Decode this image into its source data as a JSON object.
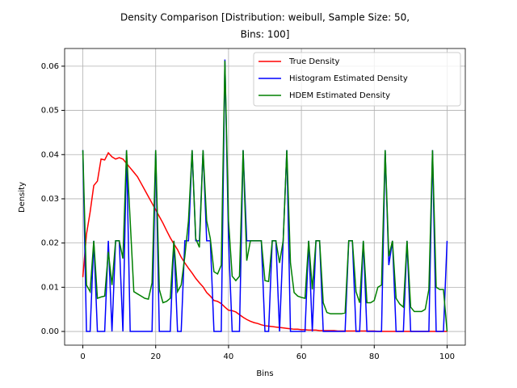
{
  "chart_data": {
    "type": "line",
    "title": [
      "Density Comparison [Distribution: weibull, Sample Size: 50,",
      "Bins: 100]"
    ],
    "xlabel": "Bins",
    "ylabel": "Density",
    "x": [
      0,
      1,
      2,
      3,
      4,
      5,
      6,
      7,
      8,
      9,
      10,
      11,
      12,
      13,
      14,
      15,
      16,
      17,
      18,
      19,
      20,
      21,
      22,
      23,
      24,
      25,
      26,
      27,
      28,
      29,
      30,
      31,
      32,
      33,
      34,
      35,
      36,
      37,
      38,
      39,
      40,
      41,
      42,
      43,
      44,
      45,
      46,
      47,
      48,
      49,
      50,
      51,
      52,
      53,
      54,
      55,
      56,
      57,
      58,
      59,
      60,
      61,
      62,
      63,
      64,
      65,
      66,
      67,
      68,
      69,
      70,
      71,
      72,
      73,
      74,
      75,
      76,
      77,
      78,
      79,
      80,
      81,
      82,
      83,
      84,
      85,
      86,
      87,
      88,
      89,
      90,
      91,
      92,
      93,
      94,
      95,
      96,
      97,
      98,
      99,
      100
    ],
    "series": [
      {
        "name": "True Density",
        "color": "#ff0000",
        "values": [
          0.0123,
          0.022,
          0.027,
          0.033,
          0.034,
          0.039,
          0.0388,
          0.0404,
          0.0395,
          0.039,
          0.0393,
          0.039,
          0.038,
          0.037,
          0.036,
          0.035,
          0.0335,
          0.032,
          0.0305,
          0.029,
          0.0275,
          0.026,
          0.0245,
          0.0228,
          0.0212,
          0.0198,
          0.0185,
          0.0168,
          0.0155,
          0.0143,
          0.0132,
          0.012,
          0.011,
          0.0101,
          0.0088,
          0.008,
          0.007,
          0.0068,
          0.0063,
          0.0055,
          0.0048,
          0.0047,
          0.0044,
          0.0038,
          0.0032,
          0.0027,
          0.0023,
          0.002,
          0.0018,
          0.0015,
          0.0013,
          0.0012,
          0.0011,
          0.001,
          0.0009,
          0.0008,
          0.0007,
          0.0006,
          0.0005,
          0.0005,
          0.0004,
          0.0004,
          0.0003,
          0.0003,
          0.0003,
          0.0002,
          0.0002,
          0.0002,
          0.0002,
          0.0002,
          0.0001,
          0.0001,
          0.0001,
          0.0001,
          0.0001,
          0.0001,
          0.0001,
          0.0001,
          0.0001,
          0.0001,
          0.0001,
          0,
          0,
          0,
          0,
          0,
          0,
          0,
          0,
          0,
          0,
          0,
          0,
          0,
          0,
          0,
          0,
          0,
          0,
          0,
          0
        ]
      },
      {
        "name": "Histogram Estimated Density",
        "color": "#0000ff",
        "values": [
          0.041,
          0,
          0,
          0.0205,
          0,
          0,
          0,
          0.0205,
          0,
          0.0205,
          0.0205,
          0,
          0.041,
          0,
          0,
          0,
          0,
          0,
          0,
          0,
          0.041,
          0,
          0,
          0,
          0,
          0.0205,
          0,
          0,
          0.0205,
          0.0205,
          0.041,
          0.0205,
          0.0205,
          0.041,
          0.0205,
          0.0205,
          0,
          0,
          0,
          0.0615,
          0.0205,
          0,
          0,
          0,
          0.041,
          0.0205,
          0.0205,
          0.0205,
          0.0205,
          0.0205,
          0,
          0,
          0.0205,
          0.0205,
          0,
          0.0205,
          0.041,
          0,
          0,
          0,
          0,
          0,
          0.0205,
          0,
          0.0205,
          0.0205,
          0,
          0,
          0,
          0,
          0,
          0,
          0,
          0.0205,
          0.0205,
          0,
          0,
          0.0205,
          0,
          0,
          0,
          0,
          0,
          0.041,
          0.015,
          0.0205,
          0,
          0,
          0,
          0.0205,
          0,
          0,
          0,
          0,
          0,
          0,
          0.041,
          0,
          0,
          0,
          0.0205
        ]
      },
      {
        "name": "HDEM Estimated Density",
        "color": "#008000",
        "values": [
          0.041,
          0.0105,
          0.009,
          0.0205,
          0.0075,
          0.0078,
          0.008,
          0.018,
          0.0105,
          0.0205,
          0.0205,
          0.0165,
          0.041,
          0.025,
          0.009,
          0.0085,
          0.008,
          0.0075,
          0.0073,
          0.011,
          0.041,
          0.0095,
          0.0065,
          0.0068,
          0.0075,
          0.0205,
          0.009,
          0.0105,
          0.017,
          0.025,
          0.041,
          0.021,
          0.019,
          0.041,
          0.025,
          0.021,
          0.0135,
          0.013,
          0.015,
          0.0612,
          0.025,
          0.0125,
          0.0115,
          0.0125,
          0.041,
          0.016,
          0.0205,
          0.0205,
          0.0205,
          0.0205,
          0.0115,
          0.0113,
          0.0205,
          0.0205,
          0.0155,
          0.0205,
          0.041,
          0.0155,
          0.0088,
          0.008,
          0.0077,
          0.0075,
          0.0205,
          0.0095,
          0.0205,
          0.0205,
          0.0065,
          0.0043,
          0.004,
          0.004,
          0.004,
          0.004,
          0.0042,
          0.0205,
          0.0205,
          0.009,
          0.0065,
          0.0205,
          0.0065,
          0.0065,
          0.007,
          0.01,
          0.0105,
          0.041,
          0.017,
          0.0205,
          0.0075,
          0.0062,
          0.0055,
          0.0205,
          0.0055,
          0.0045,
          0.0045,
          0.0045,
          0.005,
          0.0095,
          0.041,
          0.01,
          0.0095,
          0.0095,
          0
        ]
      }
    ],
    "xlim": [
      -5,
      105
    ],
    "xticks": [
      0,
      20,
      40,
      60,
      80,
      100
    ],
    "ylim": [
      -0.0031,
      0.064
    ],
    "yticks": [
      {
        "value": 0,
        "label": "0.00"
      },
      {
        "value": 0.01,
        "label": "0.01"
      },
      {
        "value": 0.02,
        "label": "0.02"
      },
      {
        "value": 0.03,
        "label": "0.03"
      },
      {
        "value": 0.04,
        "label": "0.04"
      },
      {
        "value": 0.05,
        "label": "0.05"
      },
      {
        "value": 0.06,
        "label": "0.06"
      }
    ],
    "grid": true,
    "legend": "upper right"
  }
}
